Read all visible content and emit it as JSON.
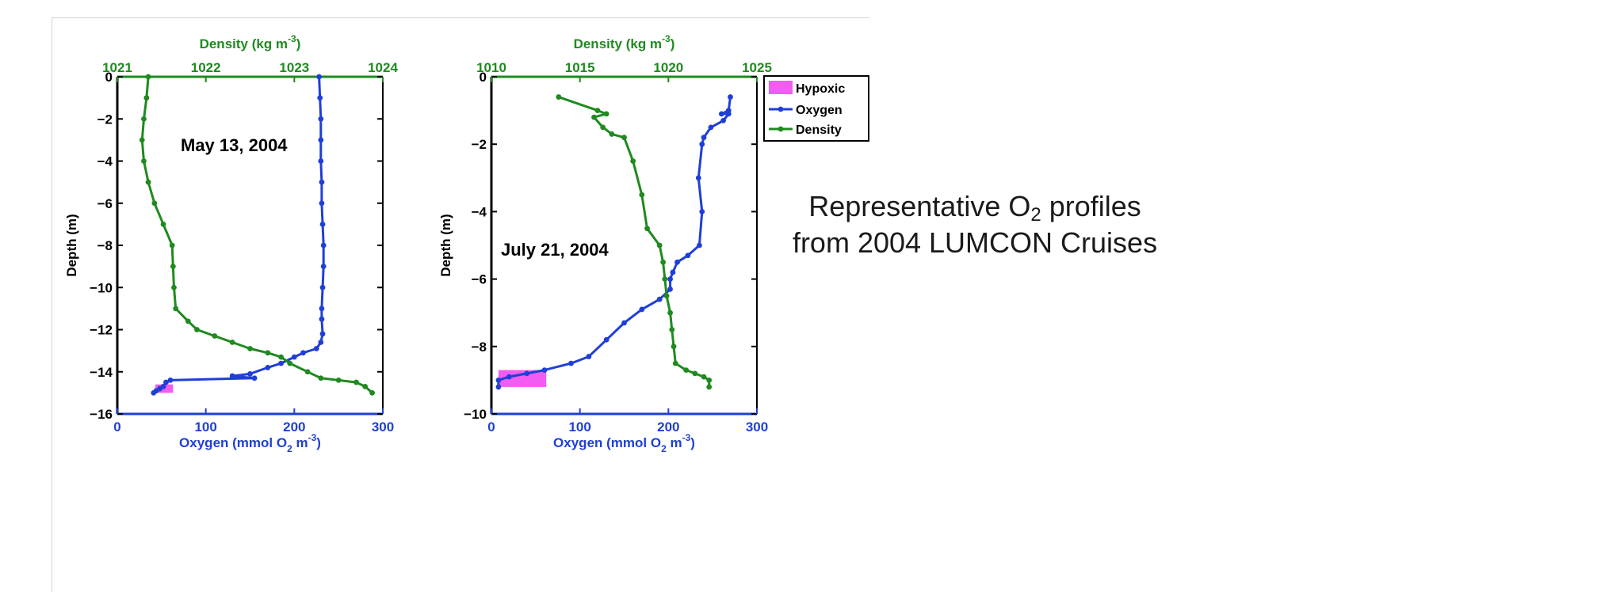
{
  "page": {
    "caption_line1_pre": "Representative O",
    "caption_line1_sub": "2",
    "caption_line1_post": " profiles",
    "caption_line2": "from 2004 LUMCON Cruises"
  },
  "legend": {
    "hypoxic": "Hypoxic",
    "oxygen": "Oxygen",
    "density": "Density"
  },
  "colors": {
    "oxygen": "#1f3fd6",
    "density": "#1f8a1f",
    "hypoxic": "#f25cf0",
    "axis": "#000000"
  },
  "chart_data": [
    {
      "type": "line",
      "date_label": "May 13, 2004",
      "ylabel": "Depth (m)",
      "ylim": [
        -16,
        0
      ],
      "yticks": [
        0,
        -2,
        -4,
        -6,
        -8,
        -10,
        -12,
        -14,
        -16
      ],
      "x_bottom": {
        "label_pre": "Oxygen (mmol O",
        "label_sub": "2",
        "label_mid": " m",
        "label_sup": "-3",
        "label_post": ")",
        "lim": [
          0,
          300
        ],
        "ticks": [
          0,
          100,
          200,
          300
        ]
      },
      "x_top": {
        "label_pre": "Density (kg m",
        "label_sup": "-3",
        "label_post": ")",
        "lim": [
          1021,
          1024
        ],
        "ticks": [
          1021,
          1022,
          1023,
          1024
        ]
      },
      "hypoxic_region": {
        "x": [
          43,
          63
        ],
        "depth": [
          -14.6,
          -15.0
        ]
      },
      "series": [
        {
          "key": "oxygen",
          "axis": "bottom",
          "points": [
            [
              228,
              0
            ],
            [
              229,
              -1
            ],
            [
              230,
              -2
            ],
            [
              230,
              -3
            ],
            [
              230,
              -4
            ],
            [
              231,
              -5
            ],
            [
              231,
              -6
            ],
            [
              232,
              -7
            ],
            [
              233,
              -8
            ],
            [
              233,
              -9
            ],
            [
              232,
              -10
            ],
            [
              231,
              -11
            ],
            [
              231,
              -11.5
            ],
            [
              232,
              -12.2
            ],
            [
              230,
              -12.6
            ],
            [
              225,
              -12.9
            ],
            [
              210,
              -13.1
            ],
            [
              200,
              -13.3
            ],
            [
              185,
              -13.6
            ],
            [
              170,
              -13.8
            ],
            [
              150,
              -14.1
            ],
            [
              130,
              -14.2
            ],
            [
              155,
              -14.3
            ],
            [
              60,
              -14.4
            ],
            [
              55,
              -14.5
            ],
            [
              52,
              -14.7
            ],
            [
              48,
              -14.8
            ],
            [
              44,
              -14.9
            ],
            [
              41,
              -15.0
            ]
          ]
        },
        {
          "key": "density",
          "axis": "top",
          "points": [
            [
              1021.35,
              0
            ],
            [
              1021.33,
              -1
            ],
            [
              1021.3,
              -2
            ],
            [
              1021.28,
              -3
            ],
            [
              1021.3,
              -4
            ],
            [
              1021.35,
              -5
            ],
            [
              1021.42,
              -6
            ],
            [
              1021.52,
              -7
            ],
            [
              1021.62,
              -8
            ],
            [
              1021.63,
              -9
            ],
            [
              1021.64,
              -10
            ],
            [
              1021.66,
              -11
            ],
            [
              1021.8,
              -11.6
            ],
            [
              1021.9,
              -12
            ],
            [
              1022.1,
              -12.3
            ],
            [
              1022.3,
              -12.6
            ],
            [
              1022.5,
              -12.9
            ],
            [
              1022.7,
              -13.1
            ],
            [
              1022.85,
              -13.3
            ],
            [
              1022.95,
              -13.6
            ],
            [
              1023.15,
              -14.0
            ],
            [
              1023.3,
              -14.3
            ],
            [
              1023.5,
              -14.4
            ],
            [
              1023.7,
              -14.5
            ],
            [
              1023.8,
              -14.7
            ],
            [
              1023.88,
              -15.0
            ]
          ]
        }
      ]
    },
    {
      "type": "line",
      "date_label": "July 21, 2004",
      "ylabel": "Depth (m)",
      "ylim": [
        -10,
        0
      ],
      "yticks": [
        0,
        -2,
        -4,
        -6,
        -8,
        -10
      ],
      "x_bottom": {
        "label_pre": "Oxygen (mmol O",
        "label_sub": "2",
        "label_mid": " m",
        "label_sup": "-3",
        "label_post": ")",
        "lim": [
          0,
          300
        ],
        "ticks": [
          0,
          100,
          200,
          300
        ]
      },
      "x_top": {
        "label_pre": "Density (kg m",
        "label_sup": "-3",
        "label_post": ")",
        "lim": [
          1010,
          1025
        ],
        "ticks": [
          1010,
          1015,
          1020,
          1025
        ]
      },
      "hypoxic_region": {
        "x": [
          8,
          62
        ],
        "depth": [
          -8.7,
          -9.2
        ]
      },
      "series": [
        {
          "key": "oxygen",
          "axis": "bottom",
          "points": [
            [
              270,
              -0.6
            ],
            [
              268,
              -1.0
            ],
            [
              260,
              -1.1
            ],
            [
              268,
              -1.1
            ],
            [
              262,
              -1.3
            ],
            [
              248,
              -1.5
            ],
            [
              240,
              -1.8
            ],
            [
              238,
              -2.0
            ],
            [
              234,
              -3.0
            ],
            [
              238,
              -4.0
            ],
            [
              235,
              -5.0
            ],
            [
              222,
              -5.3
            ],
            [
              210,
              -5.5
            ],
            [
              205,
              -5.8
            ],
            [
              202,
              -6.0
            ],
            [
              202,
              -6.3
            ],
            [
              190,
              -6.6
            ],
            [
              170,
              -6.9
            ],
            [
              150,
              -7.3
            ],
            [
              130,
              -7.8
            ],
            [
              110,
              -8.3
            ],
            [
              90,
              -8.5
            ],
            [
              60,
              -8.7
            ],
            [
              40,
              -8.8
            ],
            [
              20,
              -8.9
            ],
            [
              8,
              -9.0
            ],
            [
              8,
              -9.2
            ]
          ]
        },
        {
          "key": "density",
          "axis": "top",
          "points": [
            [
              1013.8,
              -0.6
            ],
            [
              1016.0,
              -1.0
            ],
            [
              1016.5,
              -1.1
            ],
            [
              1015.8,
              -1.2
            ],
            [
              1016.3,
              -1.5
            ],
            [
              1016.8,
              -1.7
            ],
            [
              1017.5,
              -1.8
            ],
            [
              1018.0,
              -2.5
            ],
            [
              1018.5,
              -3.5
            ],
            [
              1018.8,
              -4.5
            ],
            [
              1019.5,
              -5.0
            ],
            [
              1019.7,
              -5.5
            ],
            [
              1019.8,
              -6.0
            ],
            [
              1019.9,
              -6.5
            ],
            [
              1020.1,
              -7.0
            ],
            [
              1020.2,
              -7.5
            ],
            [
              1020.3,
              -8.0
            ],
            [
              1020.4,
              -8.5
            ],
            [
              1021.0,
              -8.7
            ],
            [
              1021.5,
              -8.8
            ],
            [
              1022.0,
              -8.9
            ],
            [
              1022.3,
              -9.0
            ],
            [
              1022.3,
              -9.2
            ]
          ]
        }
      ]
    }
  ]
}
